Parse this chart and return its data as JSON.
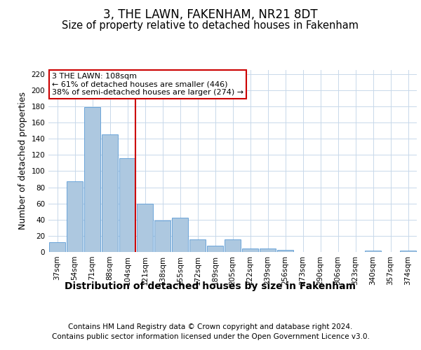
{
  "title": "3, THE LAWN, FAKENHAM, NR21 8DT",
  "subtitle": "Size of property relative to detached houses in Fakenham",
  "xlabel": "Distribution of detached houses by size in Fakenham",
  "ylabel": "Number of detached properties",
  "footer_line1": "Contains HM Land Registry data © Crown copyright and database right 2024.",
  "footer_line2": "Contains public sector information licensed under the Open Government Licence v3.0.",
  "categories": [
    "37sqm",
    "54sqm",
    "71sqm",
    "88sqm",
    "104sqm",
    "121sqm",
    "138sqm",
    "155sqm",
    "172sqm",
    "189sqm",
    "205sqm",
    "222sqm",
    "239sqm",
    "256sqm",
    "273sqm",
    "290sqm",
    "306sqm",
    "323sqm",
    "340sqm",
    "357sqm",
    "374sqm"
  ],
  "values": [
    12,
    87,
    179,
    145,
    116,
    60,
    39,
    42,
    16,
    8,
    16,
    4,
    4,
    3,
    0,
    0,
    0,
    0,
    2,
    0,
    2
  ],
  "bar_color": "#adc8e0",
  "bar_edge_color": "#5b9bd5",
  "grid_color": "#c8d8ea",
  "vline_x_index": 4,
  "vline_color": "#cc0000",
  "annotation_text": "3 THE LAWN: 108sqm\n← 61% of detached houses are smaller (446)\n38% of semi-detached houses are larger (274) →",
  "annotation_box_color": "#ffffff",
  "annotation_box_edge": "#cc0000",
  "ylim": [
    0,
    225
  ],
  "yticks": [
    0,
    20,
    40,
    60,
    80,
    100,
    120,
    140,
    160,
    180,
    200,
    220
  ],
  "title_fontsize": 12,
  "subtitle_fontsize": 10.5,
  "xlabel_fontsize": 10,
  "ylabel_fontsize": 9,
  "tick_fontsize": 7.5,
  "annotation_fontsize": 8,
  "footer_fontsize": 7.5
}
